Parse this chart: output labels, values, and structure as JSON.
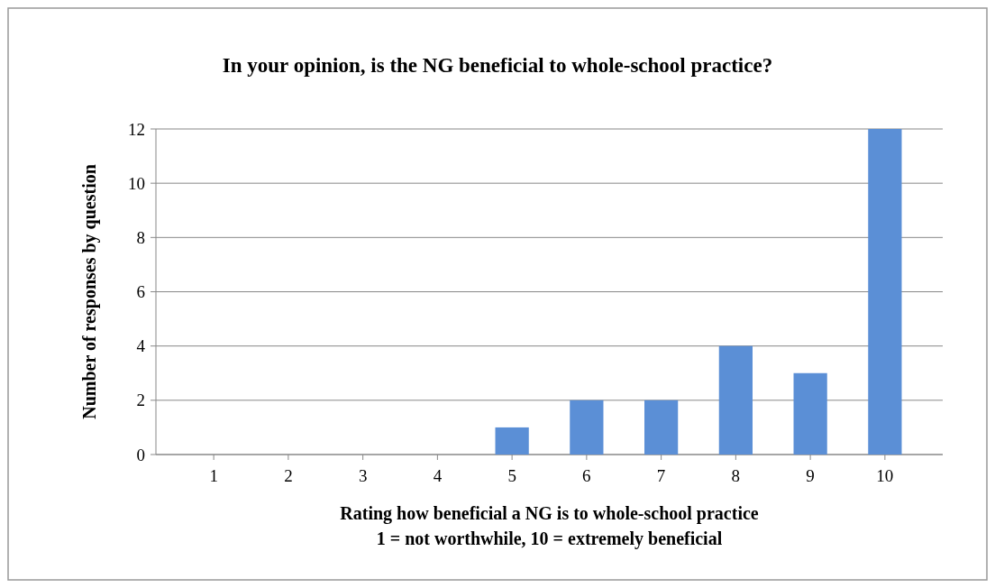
{
  "chart_data": {
    "type": "bar",
    "title": "In your opinion, is the NG beneficial to whole-school practice?",
    "xlabel": "Rating how beneficial a NG is to whole-school practice\n1 = not worthwhile, 10 = extremely beneficial",
    "ylabel": "Number of responses by question",
    "categories": [
      "1",
      "2",
      "3",
      "4",
      "5",
      "6",
      "7",
      "8",
      "9",
      "10"
    ],
    "values": [
      0,
      0,
      0,
      0,
      1,
      2,
      2,
      4,
      3,
      12
    ],
    "color": "#5b8fd6",
    "ylim": [
      0,
      12
    ],
    "yticks": [
      0,
      2,
      4,
      6,
      8,
      10,
      12
    ],
    "grid": "y"
  }
}
